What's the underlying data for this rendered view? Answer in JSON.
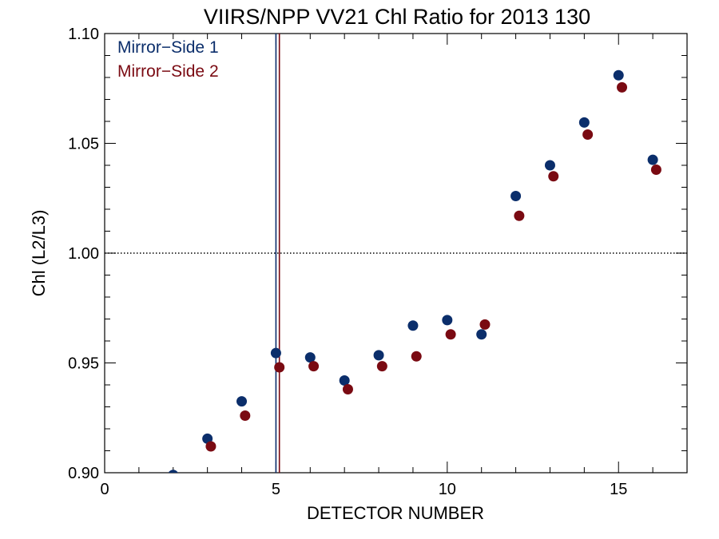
{
  "chart_data": {
    "type": "scatter",
    "title": "VIIRS/NPP VV21 Chl Ratio for 2013 130",
    "xlabel": "DETECTOR NUMBER",
    "ylabel": "Chl (L2/L3)",
    "xlim": [
      0,
      17
    ],
    "ylim": [
      0.9,
      1.1
    ],
    "x_ticks": [
      "0",
      "5",
      "10",
      "15"
    ],
    "y_ticks": [
      "0.90",
      "0.95",
      "1.00",
      "1.05",
      "1.10"
    ],
    "x_tick_values": [
      0,
      5,
      10,
      15
    ],
    "y_tick_values": [
      0.9,
      0.95,
      1.0,
      1.05,
      1.1
    ],
    "reference_line": {
      "y": 1.0,
      "style": "dotted"
    },
    "legend_position": "top-left",
    "series": [
      {
        "name": "Mirror−Side 1",
        "color": "#0b2e6b",
        "vertical_line_x": 5.0,
        "x": [
          2,
          3,
          4,
          5,
          6,
          7,
          8,
          9,
          10,
          11,
          12,
          13,
          14,
          15,
          16
        ],
        "y": [
          0.899,
          0.9155,
          0.9325,
          0.9545,
          0.9525,
          0.942,
          0.9535,
          0.967,
          0.9695,
          0.963,
          1.026,
          1.04,
          1.0595,
          1.081,
          1.0425
        ]
      },
      {
        "name": "Mirror−Side 2",
        "color": "#7a0a12",
        "vertical_line_x": 5.1,
        "x": [
          3.1,
          4.1,
          5.1,
          6.1,
          7.1,
          8.1,
          9.1,
          10.1,
          11.1,
          12.1,
          13.1,
          14.1,
          15.1,
          16.1
        ],
        "y": [
          0.912,
          0.926,
          0.948,
          0.9485,
          0.938,
          0.9485,
          0.953,
          0.963,
          0.9675,
          1.017,
          1.035,
          1.054,
          1.0755,
          1.038
        ]
      }
    ]
  }
}
